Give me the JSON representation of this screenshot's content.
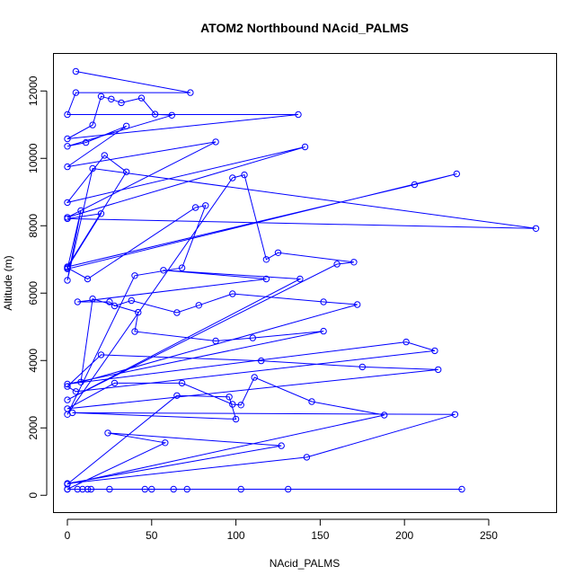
{
  "chart_data": {
    "type": "line",
    "title": "ATOM2 Northbound NAcid_PALMS",
    "xlabel": "NAcid_PALMS",
    "ylabel": "Altitude (m)",
    "xlim": [
      -8,
      290
    ],
    "ylim": [
      -500,
      13100
    ],
    "x_ticks": [
      0,
      50,
      100,
      150,
      200,
      250
    ],
    "y_ticks": [
      0,
      2000,
      4000,
      6000,
      8000,
      10000,
      12000
    ],
    "grid": false,
    "legend": "none",
    "color": "#0000ff",
    "series": [
      {
        "x": [
          5,
          73,
          5,
          0,
          137,
          0,
          15,
          20,
          26,
          32,
          44,
          52,
          62,
          0,
          11,
          35,
          0,
          88,
          0,
          141,
          0,
          22,
          35,
          0,
          206,
          231,
          0,
          8,
          0,
          15,
          278,
          0,
          20,
          0,
          12,
          76,
          82,
          68,
          40,
          0,
          98,
          105,
          118,
          125,
          170,
          160,
          0,
          138,
          57,
          118,
          6,
          25,
          28,
          38,
          65,
          78,
          98,
          152,
          172,
          8,
          15,
          42,
          40,
          88,
          110,
          152,
          0,
          201,
          218,
          5,
          0,
          20,
          115,
          175,
          220,
          0,
          28,
          68,
          98,
          103,
          111,
          145,
          188,
          0,
          65,
          96,
          100,
          3,
          230,
          142,
          0,
          127,
          24,
          58,
          0,
          131,
          234,
          103,
          71,
          63,
          50,
          46,
          25,
          14,
          12,
          9,
          6,
          0
        ],
        "y": [
          12580,
          11950,
          11950,
          11300,
          11300,
          10580,
          10990,
          11840,
          11760,
          11650,
          11790,
          11310,
          11280,
          10360,
          10470,
          10960,
          9750,
          10490,
          8250,
          10340,
          8690,
          10090,
          9600,
          6780,
          9220,
          9540,
          6720,
          8450,
          6380,
          9700,
          7920,
          8210,
          8360,
          6750,
          6420,
          8540,
          8600,
          6750,
          6520,
          2400,
          9420,
          9510,
          7000,
          7200,
          6920,
          6860,
          2830,
          6420,
          6680,
          6420,
          5740,
          5740,
          5620,
          5780,
          5420,
          5640,
          5980,
          5740,
          5660,
          3360,
          5830,
          5430,
          4860,
          4580,
          4670,
          4870,
          3300,
          4550,
          4290,
          3080,
          3230,
          4170,
          3990,
          3810,
          3730,
          2570,
          3330,
          3330,
          2700,
          2680,
          3500,
          2780,
          2380,
          330,
          2960,
          2920,
          2260,
          2450,
          2400,
          1130,
          350,
          1470,
          1850,
          1560,
          180,
          180,
          180,
          180,
          180,
          180,
          180,
          180,
          180,
          180,
          180,
          180,
          180,
          180
        ]
      }
    ]
  }
}
